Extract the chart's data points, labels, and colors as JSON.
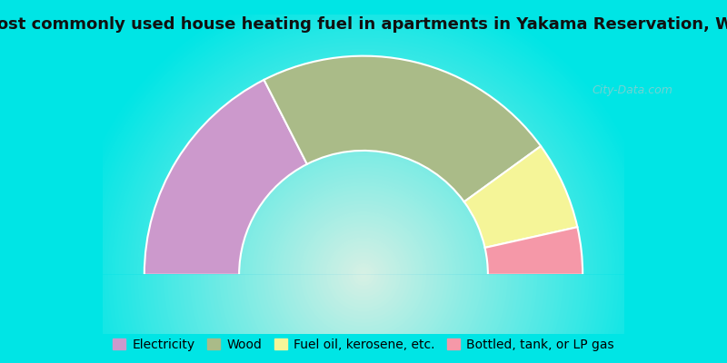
{
  "title": "Most commonly used house heating fuel in apartments in Yakama Reservation, WA",
  "segments": [
    {
      "label": "Electricity",
      "value": 35,
      "color": "#cc99cc"
    },
    {
      "label": "Wood",
      "value": 45,
      "color": "#aabb88"
    },
    {
      "label": "Fuel oil, kerosene, etc.",
      "value": 13,
      "color": "#f5f598"
    },
    {
      "label": "Bottled, tank, or LP gas",
      "value": 7,
      "color": "#f598a8"
    }
  ],
  "background_color": "#00e5e5",
  "title_fontsize": 13,
  "legend_fontsize": 10,
  "watermark": "City-Data.com"
}
